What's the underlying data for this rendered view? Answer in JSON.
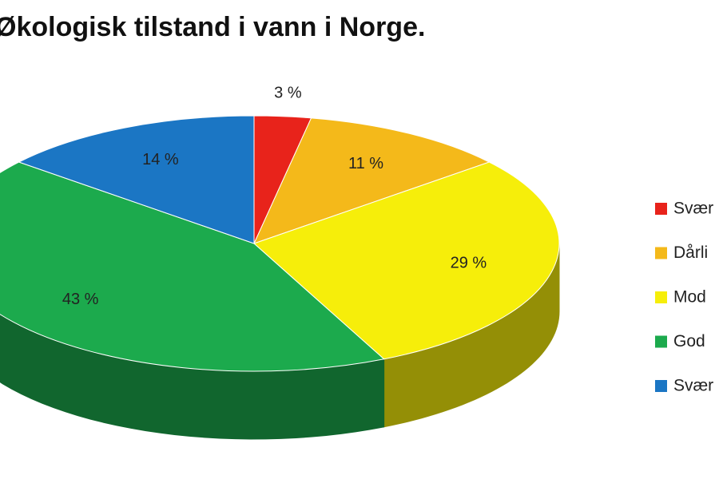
{
  "chart_data": {
    "type": "pie3d",
    "title": "Økologisk tilstand i vann i Norge.",
    "categories": [
      "Svær",
      "Dårli",
      "Mod",
      "God",
      "Svær"
    ],
    "values": [
      3,
      11,
      29,
      43,
      14
    ],
    "value_labels": [
      "3 %",
      "11 %",
      "29 %",
      "43 %",
      "14 %"
    ],
    "colors": [
      "#e8231b",
      "#f4b91a",
      "#f6ee0a",
      "#1caa4d",
      "#1b76c4"
    ]
  }
}
